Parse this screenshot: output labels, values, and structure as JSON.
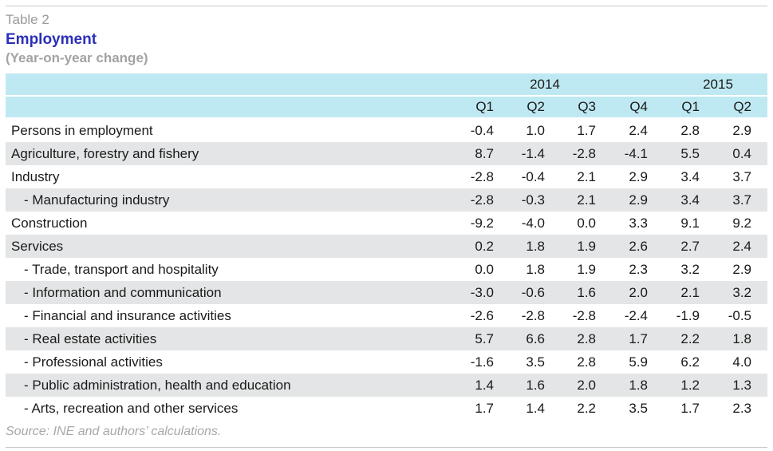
{
  "table_label": "Table 2",
  "title": "Employment",
  "subtitle": "(Year-on-year change)",
  "years": [
    "2014",
    "2015"
  ],
  "quarters": [
    "Q1",
    "Q2",
    "Q3",
    "Q4",
    "Q1",
    "Q2"
  ],
  "rows": [
    {
      "label": "Persons in employment",
      "values": [
        "-0.4",
        "1.0",
        "1.7",
        "2.4",
        "2.8",
        "2.9"
      ]
    },
    {
      "label": "Agriculture, forestry and fishery",
      "values": [
        "8.7",
        "-1.4",
        "-2.8",
        "-4.1",
        "5.5",
        "0.4"
      ]
    },
    {
      "label": "Industry",
      "values": [
        "-2.8",
        "-0.4",
        "2.1",
        "2.9",
        "3.4",
        "3.7"
      ]
    },
    {
      "label": "- Manufacturing industry",
      "values": [
        "-2.8",
        "-0.3",
        "2.1",
        "2.9",
        "3.4",
        "3.7"
      ]
    },
    {
      "label": "Construction",
      "values": [
        "-9.2",
        "-4.0",
        "0.0",
        "3.3",
        "9.1",
        "9.2"
      ]
    },
    {
      "label": "Services",
      "values": [
        "0.2",
        "1.8",
        "1.9",
        "2.6",
        "2.7",
        "2.4"
      ]
    },
    {
      "label": "- Trade, transport and hospitality",
      "values": [
        "0.0",
        "1.8",
        "1.9",
        "2.3",
        "3.2",
        "2.9"
      ]
    },
    {
      "label": "- Information and communication",
      "values": [
        "-3.0",
        "-0.6",
        "1.6",
        "2.0",
        "2.1",
        "3.2"
      ]
    },
    {
      "label": "- Financial and insurance activities",
      "values": [
        "-2.6",
        "-2.8",
        "-2.8",
        "-2.4",
        "-1.9",
        "-0.5"
      ]
    },
    {
      "label": "- Real estate activities",
      "values": [
        "5.7",
        "6.6",
        "2.8",
        "1.7",
        "2.2",
        "1.8"
      ]
    },
    {
      "label": "- Professional activities",
      "values": [
        "-1.6",
        "3.5",
        "2.8",
        "5.9",
        "6.2",
        "4.0"
      ]
    },
    {
      "label": "- Public administration, health and education",
      "values": [
        "1.4",
        "1.6",
        "2.0",
        "1.8",
        "1.2",
        "1.3"
      ]
    },
    {
      "label": "- Arts, recreation and other services",
      "values": [
        "1.7",
        "1.4",
        "2.2",
        "3.5",
        "1.7",
        "2.3"
      ]
    }
  ],
  "source": "Source: INE and authors’ calculations."
}
